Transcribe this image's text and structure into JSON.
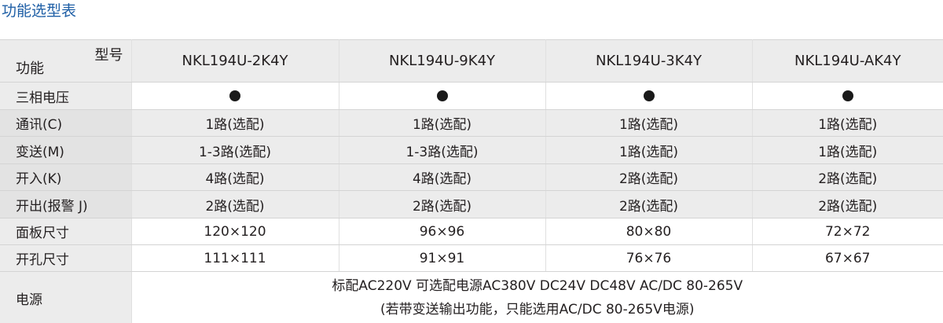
{
  "title": "功能选型表",
  "header": {
    "model_label": "型号",
    "function_label": "功能",
    "models": [
      "NKL194U-2K4Y",
      "NKL194U-9K4Y",
      "NKL194U-3K4Y",
      "NKL194U-AK4Y"
    ]
  },
  "rows": [
    {
      "label": "三相电压",
      "values": [
        "●",
        "●",
        "●",
        "●"
      ]
    },
    {
      "label": "通讯(C)",
      "values": [
        "1路(选配)",
        "1路(选配)",
        "1路(选配)",
        "1路(选配)"
      ]
    },
    {
      "label": "变送(M)",
      "values": [
        "1-3路(选配)",
        "1-3路(选配)",
        "1路(选配)",
        "1路(选配)"
      ]
    },
    {
      "label": "开入(K)",
      "values": [
        "4路(选配)",
        "4路(选配)",
        "2路(选配)",
        "2路(选配)"
      ]
    },
    {
      "label": "开出(报警 J)",
      "values": [
        "2路(选配)",
        "2路(选配)",
        "2路(选配)",
        "2路(选配)"
      ]
    },
    {
      "label": "面板尺寸",
      "values": [
        "120×120",
        "96×96",
        "80×80",
        "72×72"
      ]
    },
    {
      "label": "开孔尺寸",
      "values": [
        "111×111",
        "91×91",
        "76×76",
        "67×67"
      ]
    }
  ],
  "power": {
    "label": "电源",
    "line1": "标配AC220V  可选配电源AC380V DC24V DC48V AC/DC 80-265V",
    "line2": "(若带变送输出功能，只能选用AC/DC 80-265V电源)"
  },
  "colors": {
    "title": "#1f5fa6",
    "band": "#ececec",
    "dot": "#1a1a1a"
  }
}
